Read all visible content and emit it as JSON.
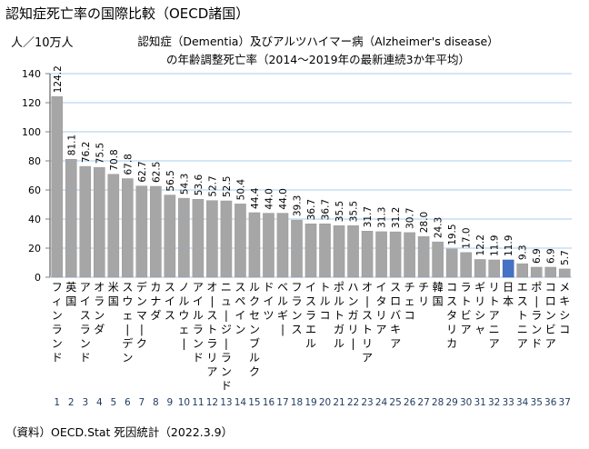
{
  "page": {
    "title": "認知症死亡率の国際比較（OECD諸国）",
    "source": "（資料）OECD.Stat 死因統計（2022.3.9）"
  },
  "chart_data": {
    "type": "bar",
    "title": "認知症（Dementia）及びアルツハイマー病（Alzheimer's disease）",
    "subtitle": "の年齢調整死亡率（2014～2019年の最新連続3か年平均）",
    "ylabel": "人／10万人",
    "xlabel": "",
    "ylim": [
      0,
      140
    ],
    "yticks": [
      0,
      20,
      40,
      60,
      80,
      100,
      120,
      140
    ],
    "grid": true,
    "legend": "none",
    "colors": {
      "default": "#a6a6a6",
      "highlight": "#4472c4",
      "grid": "#c5ddf3",
      "axis": "#808080"
    },
    "highlight_category": "日本",
    "categories": [
      "フィンランド",
      "英国",
      "アイスランド",
      "オランダ",
      "米国",
      "スウェーデン",
      "デンマーク",
      "カナダ",
      "スイス",
      "ノルウェー",
      "アイルランド",
      "オーストラリア",
      "ニュージーランド",
      "スペイン",
      "ルクセンブルク",
      "ドイツ",
      "ベルギー",
      "フランス",
      "イスラエル",
      "トルコ",
      "ポルトガル",
      "ハンガリー",
      "オーストリア",
      "イタリア",
      "スロバキア",
      "チェコ",
      "チリ",
      "韓国",
      "コスタリカ",
      "ラトビア",
      "ギリシャ",
      "リトアニア",
      "日本",
      "エストニア",
      "ポーランド",
      "コロンビア",
      "メキシコ"
    ],
    "ranks": [
      "1",
      "2",
      "3",
      "4",
      "5",
      "6",
      "7",
      "8",
      "9",
      "10",
      "11",
      "12",
      "13",
      "14",
      "15",
      "16",
      "17",
      "18",
      "19",
      "20",
      "21",
      "22",
      "23",
      "24",
      "25",
      "26",
      "27",
      "28",
      "29",
      "30",
      "31",
      "32",
      "33",
      "34",
      "35",
      "36",
      "37"
    ],
    "values": [
      124.2,
      81.1,
      76.2,
      75.5,
      70.8,
      67.8,
      62.7,
      62.5,
      56.5,
      54.3,
      53.6,
      52.7,
      52.5,
      50.4,
      44.4,
      44.0,
      44.0,
      39.3,
      36.7,
      36.7,
      35.5,
      35.5,
      31.7,
      31.3,
      31.2,
      30.7,
      28.0,
      24.3,
      19.5,
      17.0,
      12.2,
      11.9,
      11.9,
      9.3,
      6.9,
      6.9,
      5.7
    ],
    "value_labels": [
      "124.2",
      "81.1",
      "76.2",
      "75.5",
      "70.8",
      "67.8",
      "62.7",
      "62.5",
      "56.5",
      "54.3",
      "53.6",
      "52.7",
      "52.5",
      "50.4",
      "44.4",
      "44.0",
      "44.0",
      "39.3",
      "36.7",
      "36.7",
      "35.5",
      "35.5",
      "31.7",
      "31.3",
      "31.2",
      "30.7",
      "28.0",
      "24.3",
      "19.5",
      "17.0",
      "12.2",
      "11.9",
      "11.9",
      "9.3",
      "6.9",
      "6.9",
      "5.7"
    ]
  }
}
